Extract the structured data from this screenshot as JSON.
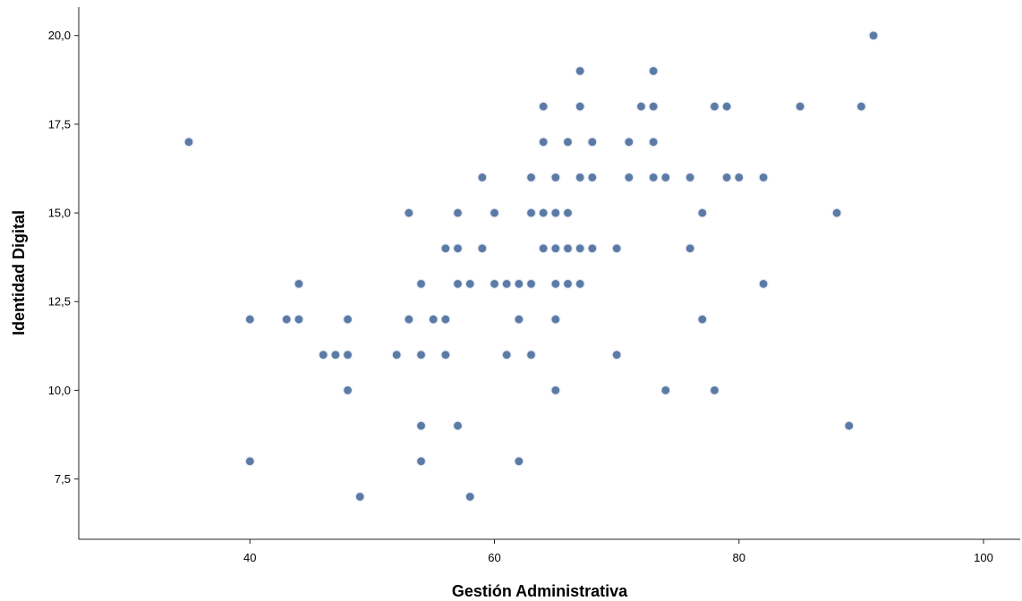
{
  "chart_data": {
    "type": "scatter",
    "title": "",
    "xlabel": "Gestión Administrativa",
    "ylabel": "Identidad Digital",
    "xlim": [
      26,
      103
    ],
    "ylim": [
      5.8,
      20.8
    ],
    "xticks": [
      40,
      60,
      80,
      100
    ],
    "xtick_labels": [
      "40",
      "60",
      "80",
      "100"
    ],
    "yticks": [
      7.5,
      10.0,
      12.5,
      15.0,
      17.5,
      20.0
    ],
    "ytick_labels": [
      "7,5",
      "10,0",
      "12,5",
      "15,0",
      "17,5",
      "20,0"
    ],
    "grid": false,
    "marker_color": "#5b7aa6",
    "marker_edge_color": "#e6ebf2",
    "points": [
      {
        "x": 35,
        "y": 17
      },
      {
        "x": 40,
        "y": 12
      },
      {
        "x": 40,
        "y": 8
      },
      {
        "x": 43,
        "y": 12
      },
      {
        "x": 44,
        "y": 13
      },
      {
        "x": 44,
        "y": 12
      },
      {
        "x": 46,
        "y": 11
      },
      {
        "x": 47,
        "y": 11
      },
      {
        "x": 48,
        "y": 12
      },
      {
        "x": 48,
        "y": 11
      },
      {
        "x": 48,
        "y": 10
      },
      {
        "x": 49,
        "y": 7
      },
      {
        "x": 52,
        "y": 11
      },
      {
        "x": 53,
        "y": 15
      },
      {
        "x": 53,
        "y": 12
      },
      {
        "x": 54,
        "y": 13
      },
      {
        "x": 54,
        "y": 11
      },
      {
        "x": 54,
        "y": 9
      },
      {
        "x": 54,
        "y": 8
      },
      {
        "x": 55,
        "y": 12
      },
      {
        "x": 56,
        "y": 14
      },
      {
        "x": 56,
        "y": 12
      },
      {
        "x": 56,
        "y": 11
      },
      {
        "x": 57,
        "y": 15
      },
      {
        "x": 57,
        "y": 14
      },
      {
        "x": 57,
        "y": 13
      },
      {
        "x": 57,
        "y": 9
      },
      {
        "x": 58,
        "y": 13
      },
      {
        "x": 58,
        "y": 7
      },
      {
        "x": 59,
        "y": 16
      },
      {
        "x": 59,
        "y": 14
      },
      {
        "x": 60,
        "y": 15
      },
      {
        "x": 60,
        "y": 13
      },
      {
        "x": 61,
        "y": 13
      },
      {
        "x": 61,
        "y": 11
      },
      {
        "x": 62,
        "y": 13
      },
      {
        "x": 62,
        "y": 12
      },
      {
        "x": 62,
        "y": 8
      },
      {
        "x": 63,
        "y": 16
      },
      {
        "x": 63,
        "y": 15
      },
      {
        "x": 63,
        "y": 13
      },
      {
        "x": 63,
        "y": 11
      },
      {
        "x": 64,
        "y": 18
      },
      {
        "x": 64,
        "y": 17
      },
      {
        "x": 64,
        "y": 15
      },
      {
        "x": 64,
        "y": 14
      },
      {
        "x": 65,
        "y": 16
      },
      {
        "x": 65,
        "y": 15
      },
      {
        "x": 65,
        "y": 14
      },
      {
        "x": 65,
        "y": 13
      },
      {
        "x": 65,
        "y": 12
      },
      {
        "x": 65,
        "y": 10
      },
      {
        "x": 66,
        "y": 17
      },
      {
        "x": 66,
        "y": 15
      },
      {
        "x": 66,
        "y": 14
      },
      {
        "x": 66,
        "y": 13
      },
      {
        "x": 67,
        "y": 19
      },
      {
        "x": 67,
        "y": 18
      },
      {
        "x": 67,
        "y": 16
      },
      {
        "x": 67,
        "y": 14
      },
      {
        "x": 67,
        "y": 13
      },
      {
        "x": 68,
        "y": 17
      },
      {
        "x": 68,
        "y": 16
      },
      {
        "x": 68,
        "y": 14
      },
      {
        "x": 70,
        "y": 14
      },
      {
        "x": 70,
        "y": 11
      },
      {
        "x": 71,
        "y": 17
      },
      {
        "x": 71,
        "y": 16
      },
      {
        "x": 72,
        "y": 18
      },
      {
        "x": 73,
        "y": 19
      },
      {
        "x": 73,
        "y": 18
      },
      {
        "x": 73,
        "y": 17
      },
      {
        "x": 73,
        "y": 16
      },
      {
        "x": 74,
        "y": 16
      },
      {
        "x": 74,
        "y": 10
      },
      {
        "x": 76,
        "y": 16
      },
      {
        "x": 76,
        "y": 14
      },
      {
        "x": 77,
        "y": 15
      },
      {
        "x": 77,
        "y": 12
      },
      {
        "x": 78,
        "y": 18
      },
      {
        "x": 78,
        "y": 10
      },
      {
        "x": 79,
        "y": 18
      },
      {
        "x": 79,
        "y": 16
      },
      {
        "x": 80,
        "y": 16
      },
      {
        "x": 82,
        "y": 16
      },
      {
        "x": 82,
        "y": 13
      },
      {
        "x": 85,
        "y": 18
      },
      {
        "x": 88,
        "y": 15
      },
      {
        "x": 89,
        "y": 9
      },
      {
        "x": 90,
        "y": 18
      },
      {
        "x": 91,
        "y": 20
      }
    ]
  }
}
